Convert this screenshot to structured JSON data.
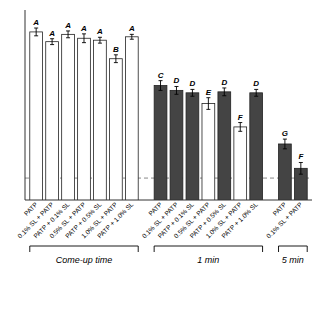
{
  "chart_data": {
    "type": "bar",
    "groups": [
      {
        "label": "Come-up time",
        "categories": [
          "PATP",
          "0.1% SL + PATP",
          "PATP + 0.1% SL",
          "0.5% SL + PATP",
          "PATP + 0.5% SL",
          "1.0% SL + PATP",
          "PATP + 1.0% SL"
        ],
        "values": [
          7.85,
          7.65,
          7.8,
          7.72,
          7.68,
          7.3,
          7.75
        ],
        "errors": [
          0.08,
          0.06,
          0.07,
          0.09,
          0.06,
          0.08,
          0.05
        ],
        "letters": [
          "A",
          "A",
          "A",
          "A",
          "A",
          "B",
          "A"
        ],
        "colors": [
          "white",
          "white",
          "white",
          "white",
          "white",
          "white",
          "white"
        ]
      },
      {
        "label": "1 min",
        "categories": [
          "PATP",
          "0.1% SL + PATP",
          "PATP + 0.1% SL",
          "0.5% SL + PATP",
          "PATP + 0.5% SL",
          "1.0% SL + PATP",
          "PATP + 1.0% SL"
        ],
        "values": [
          6.75,
          6.65,
          6.6,
          6.38,
          6.62,
          5.9,
          6.6
        ],
        "errors": [
          0.1,
          0.08,
          0.07,
          0.12,
          0.08,
          0.09,
          0.07
        ],
        "letters": [
          "C",
          "D",
          "D",
          "E",
          "D",
          "F",
          "D"
        ],
        "colors": [
          "#444444",
          "#444444",
          "#444444",
          "white",
          "#444444",
          "white",
          "#444444"
        ]
      },
      {
        "label": "5 min",
        "categories": [
          "PATP",
          "0.1% SL + PATP"
        ],
        "values": [
          5.55,
          5.05
        ],
        "errors": [
          0.1,
          0.12
        ],
        "letters": [
          "G",
          "F"
        ],
        "colors": [
          "#444444",
          "#444444"
        ]
      }
    ],
    "dashed_line": 4.85,
    "ylim": [
      4.4,
      8.3
    ],
    "yticks": [],
    "tick_labels": "x",
    "grid": false
  }
}
